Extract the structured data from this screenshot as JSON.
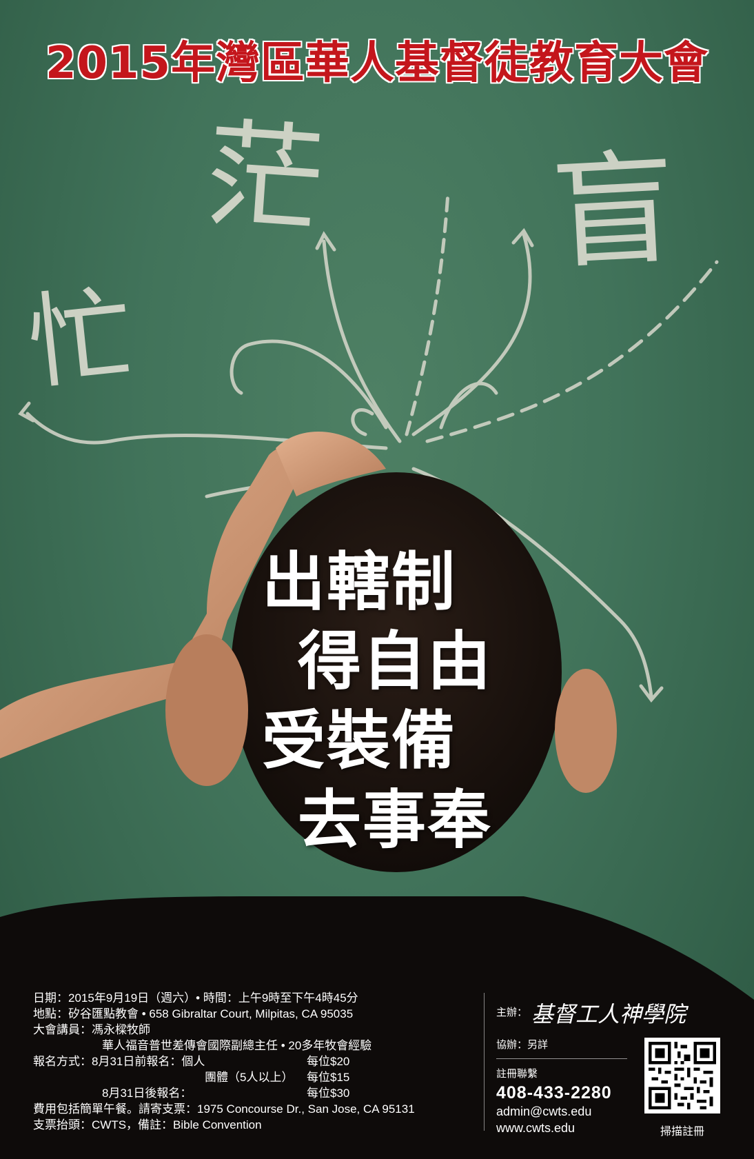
{
  "title": "2015年灣區華人基督徒教育大會",
  "chalk_words": [
    "忙",
    "茫",
    "盲"
  ],
  "slogan": [
    "出轄制",
    "得自由",
    "受裝備",
    "去事奉"
  ],
  "details": {
    "line1": "日期：2015年9月19日（週六）• 時間：上午9時至下午4時45分",
    "line2": "地點：矽谷匯點教會 • 658 Gibraltar Court, Milpitas, CA 95035",
    "line3": "大會講員：馮永樑牧師",
    "line4": "華人福音普世差傳會國際副總主任 • 20多年牧會經驗",
    "reg_label": "報名方式：8月31日前報名：個人",
    "reg_price1": "每位$20",
    "group_label": "團體（5人以上）",
    "reg_price2": "每位$15",
    "late_label": "8月31日後報名：",
    "reg_price3": "每位$30",
    "line8": "費用包括簡單午餐。請寄支票：1975 Concourse Dr., San Jose, CA 95131",
    "line9": "支票抬頭：CWTS，備註：Bible Convention"
  },
  "sponsor": {
    "host_label": "主辦：",
    "host_name": "基督工人神學院",
    "co_label": "協辦：另詳",
    "contact_label": "註冊聯繫",
    "phone": "408-433-2280",
    "email": "admin@cwts.edu",
    "website": "www.cwts.edu",
    "qr_caption": "掃描註冊"
  }
}
